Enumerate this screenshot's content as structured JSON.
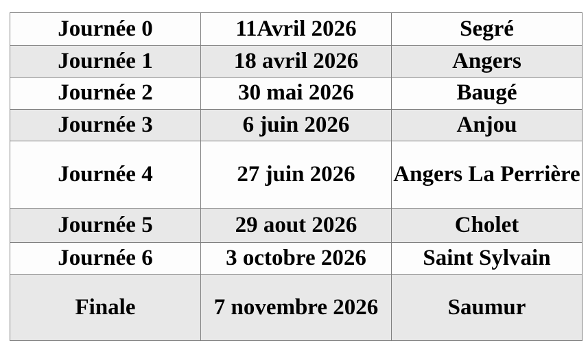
{
  "table": {
    "colors": {
      "row_white": "#fdfdfd",
      "row_gray": "#e8e8e8",
      "border": "#808080",
      "text": "#000000"
    },
    "rows": [
      {
        "journee": "Journée 0",
        "date": "11Avril 2026",
        "lieu": "Segré"
      },
      {
        "journee": "Journée 1",
        "date": "18 avril 2026",
        "lieu": "Angers"
      },
      {
        "journee": "Journée 2",
        "date": "30 mai 2026",
        "lieu": "Baugé"
      },
      {
        "journee": "Journée 3",
        "date": "6 juin 2026",
        "lieu": "Anjou"
      },
      {
        "journee": "Journée 4",
        "date": "27 juin 2026",
        "lieu": "Angers La Perrière"
      },
      {
        "journee": "Journée 5",
        "date": "29 aout 2026",
        "lieu": "Cholet"
      },
      {
        "journee": "Journée 6",
        "date": "3 octobre 2026",
        "lieu": "Saint Sylvain"
      },
      {
        "journee": "Finale",
        "date": "7 novembre 2026",
        "lieu": "Saumur"
      }
    ]
  }
}
